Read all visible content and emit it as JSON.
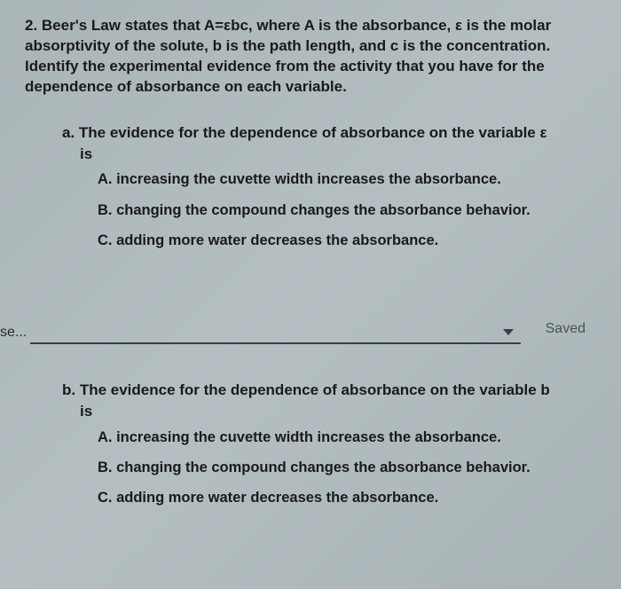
{
  "question": {
    "stem": "2. Beer's Law states that A=εbc, where A is the absorbance, ε is the molar absorptivity of the solute, b is the path length, and c is the concentration. Identify the experimental evidence from the activity that you have for the dependence of absorbance on each variable.",
    "parts": {
      "a": {
        "prompt_line1": "a. The evidence for the dependence of absorbance on the variable ε",
        "prompt_line2": "is",
        "choices": {
          "A": "A. increasing the cuvette width increases the absorbance.",
          "B": "B. changing the compound changes the absorbance behavior.",
          "C": "C. adding more water decreases the absorbance."
        }
      },
      "b": {
        "prompt_line1": "b. The evidence for the dependence of absorbance on the variable b",
        "prompt_line2": "is",
        "choices": {
          "A": "A. increasing the cuvette width increases the absorbance.",
          "B": "B. changing the compound changes the absorbance behavior.",
          "C": "C. adding more water decreases the absorbance."
        }
      }
    }
  },
  "dropdown": {
    "label_fragment": "se...",
    "saved_text": "Saved"
  }
}
